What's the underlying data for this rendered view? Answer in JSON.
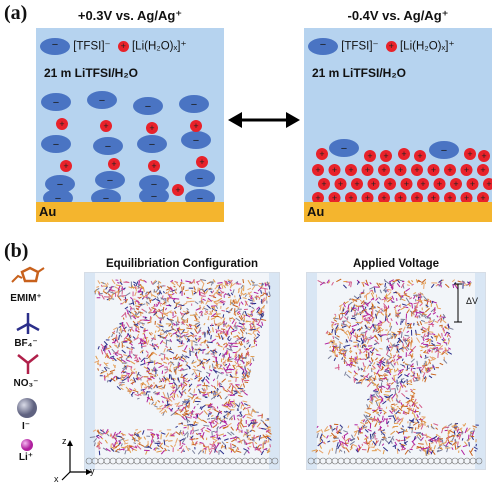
{
  "panel_a": {
    "letter": "(a)",
    "left": {
      "potential": "+0.3V vs. Ag/Ag⁺",
      "anion": "[TFSI]⁻",
      "cation": "[Li(H₂O)ₓ]⁺",
      "electrolyte": "21 m LiTFSI/H₂O",
      "electrode": "Au"
    },
    "right": {
      "potential": "-0.4V vs. Ag/Ag⁺",
      "anion": "[TFSI]⁻",
      "cation": "[Li(H₂O)ₓ]⁺",
      "electrolyte": "21 m LiTFSI/H₂O",
      "electrode": "Au"
    },
    "anion_sign": "−",
    "cation_sign": "+"
  },
  "panel_b": {
    "letter": "(b)",
    "left_title": "Equilibriation Configuration",
    "right_title": "Applied Voltage",
    "delta_v": "ΔV",
    "axes": {
      "z": "z",
      "x": "x",
      "y": "y"
    },
    "ions": [
      {
        "label": "EMIM⁺",
        "icon": "emim-ring-icon"
      },
      {
        "label": "BF₄⁻",
        "icon": "bf4-icon"
      },
      {
        "label": "NO₃⁻",
        "icon": "no3-icon"
      },
      {
        "label": "I⁻",
        "icon": "iodide-sphere-icon"
      },
      {
        "label": "Li⁺",
        "icon": "lithium-sphere-icon"
      }
    ]
  },
  "colors": {
    "electrolyte_bg": "#b6d3ef",
    "anion": "#4a74c3",
    "cation": "#e8222a",
    "gold": "#f4b52e"
  }
}
